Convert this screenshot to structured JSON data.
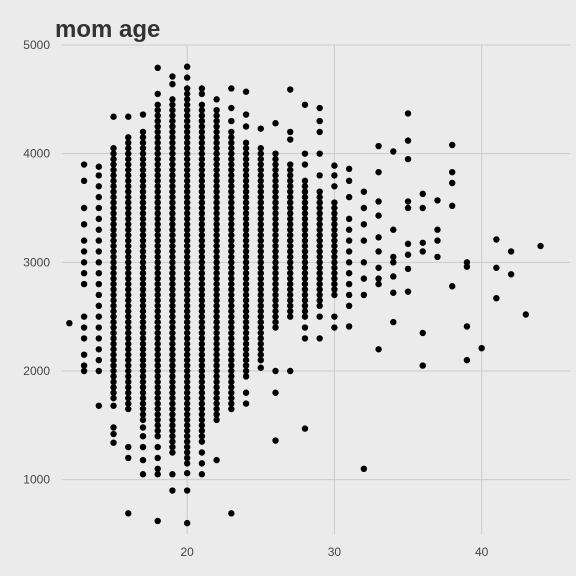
{
  "chart_data": {
    "type": "scatter",
    "title": "mom age",
    "xlabel": "",
    "ylabel": "",
    "xlim": [
      11.5,
      46
    ],
    "ylim": [
      500,
      5000
    ],
    "x_ticks": [
      20,
      30,
      40
    ],
    "y_ticks": [
      1000,
      2000,
      3000,
      4000,
      5000
    ],
    "grid": true,
    "point_color": "#000000",
    "background": "#ebebeb",
    "grid_color": "#cccccc",
    "columns": [
      {
        "x": 12,
        "y": [
          2440
        ]
      },
      {
        "x": 13,
        "y": [
          3900,
          3750,
          3500,
          3350,
          3200,
          3100,
          3000,
          2900,
          2800,
          2500,
          2400,
          2300,
          2150,
          2050,
          2000
        ]
      },
      {
        "x": 14,
        "y": [
          3880,
          3800,
          3700,
          3600,
          3500,
          3400,
          3300,
          3200,
          3100,
          3000,
          2900,
          2800,
          2700,
          2600,
          2500,
          2400,
          2300,
          2200,
          2100,
          2000,
          1680
        ]
      },
      {
        "x": 15,
        "range": [
          1750,
          4050
        ],
        "y": [
          4340,
          1680,
          1480,
          1420,
          1340
        ]
      },
      {
        "x": 16,
        "range": [
          1650,
          4150
        ],
        "y": [
          4340,
          1300,
          1200,
          690
        ]
      },
      {
        "x": 17,
        "range": [
          1550,
          4200
        ],
        "y": [
          4360,
          1480,
          1400,
          1300,
          1180,
          1050
        ]
      },
      {
        "x": 18,
        "range": [
          1400,
          4450
        ],
        "y": [
          4790,
          4550,
          1300,
          1200,
          1100,
          1050,
          620
        ]
      },
      {
        "x": 19,
        "range": [
          1250,
          4500
        ],
        "y": [
          4710,
          4640,
          1050,
          900
        ]
      },
      {
        "x": 20,
        "range": [
          1150,
          4600
        ],
        "y": [
          4800,
          4700,
          1060,
          900,
          600
        ]
      },
      {
        "x": 21,
        "range": [
          1350,
          4450
        ],
        "y": [
          4600,
          4550,
          1250,
          1150,
          1050
        ]
      },
      {
        "x": 22,
        "range": [
          1550,
          4400
        ],
        "y": [
          4500,
          1180
        ]
      },
      {
        "x": 23,
        "range": [
          1650,
          4200
        ],
        "y": [
          4600,
          4420,
          4300,
          690
        ]
      },
      {
        "x": 24,
        "range": [
          1950,
          4100
        ],
        "y": [
          4570,
          4360,
          4250,
          1800,
          1700
        ]
      },
      {
        "x": 25,
        "range": [
          2100,
          4050
        ],
        "y": [
          4230,
          2030
        ]
      },
      {
        "x": 26,
        "range": [
          2400,
          4000
        ],
        "y": [
          4280,
          2000,
          1800,
          1360
        ]
      },
      {
        "x": 27,
        "range": [
          2500,
          3900
        ],
        "y": [
          4590,
          4200,
          4130,
          2000
        ]
      },
      {
        "x": 28,
        "range": [
          2500,
          3750
        ],
        "y": [
          4450,
          4000,
          3900,
          2400,
          2300,
          1470
        ]
      },
      {
        "x": 29,
        "range": [
          2600,
          3650
        ],
        "y": [
          4420,
          4300,
          4200,
          4000,
          3800,
          2500,
          2300
        ]
      },
      {
        "x": 30,
        "range": [
          2700,
          3550
        ],
        "y": [
          3890,
          3800,
          3700,
          2500,
          2400
        ]
      },
      {
        "x": 31,
        "y": [
          3860,
          3750,
          3600,
          3400,
          3300,
          3200,
          3100,
          3000,
          2900,
          2800,
          2700,
          2600,
          2410
        ]
      },
      {
        "x": 32,
        "y": [
          3650,
          3500,
          3350,
          3200,
          3000,
          2850,
          2700,
          1100
        ]
      },
      {
        "x": 33,
        "y": [
          4070,
          3830,
          3560,
          3430,
          3230,
          3100,
          2950,
          2850,
          2800,
          2200
        ]
      },
      {
        "x": 34,
        "y": [
          4020,
          3300,
          3050,
          3000,
          2870,
          2720,
          2450
        ]
      },
      {
        "x": 35,
        "y": [
          4370,
          4120,
          3950,
          3560,
          3500,
          3170,
          3070,
          2940,
          2730
        ]
      },
      {
        "x": 36,
        "y": [
          3630,
          3500,
          3180,
          3100,
          2350,
          2050
        ]
      },
      {
        "x": 37,
        "y": [
          3570,
          3300,
          3200,
          3050
        ]
      },
      {
        "x": 38,
        "y": [
          4080,
          3830,
          3730,
          3520,
          2780
        ]
      },
      {
        "x": 39,
        "y": [
          3000,
          2960,
          2410,
          2100
        ]
      },
      {
        "x": 40,
        "y": [
          2210
        ]
      },
      {
        "x": 41,
        "y": [
          3210,
          2950,
          2670
        ]
      },
      {
        "x": 42,
        "y": [
          3100,
          2890
        ]
      },
      {
        "x": 43,
        "y": [
          2520
        ]
      },
      {
        "x": 44,
        "y": [
          3150
        ]
      }
    ]
  }
}
